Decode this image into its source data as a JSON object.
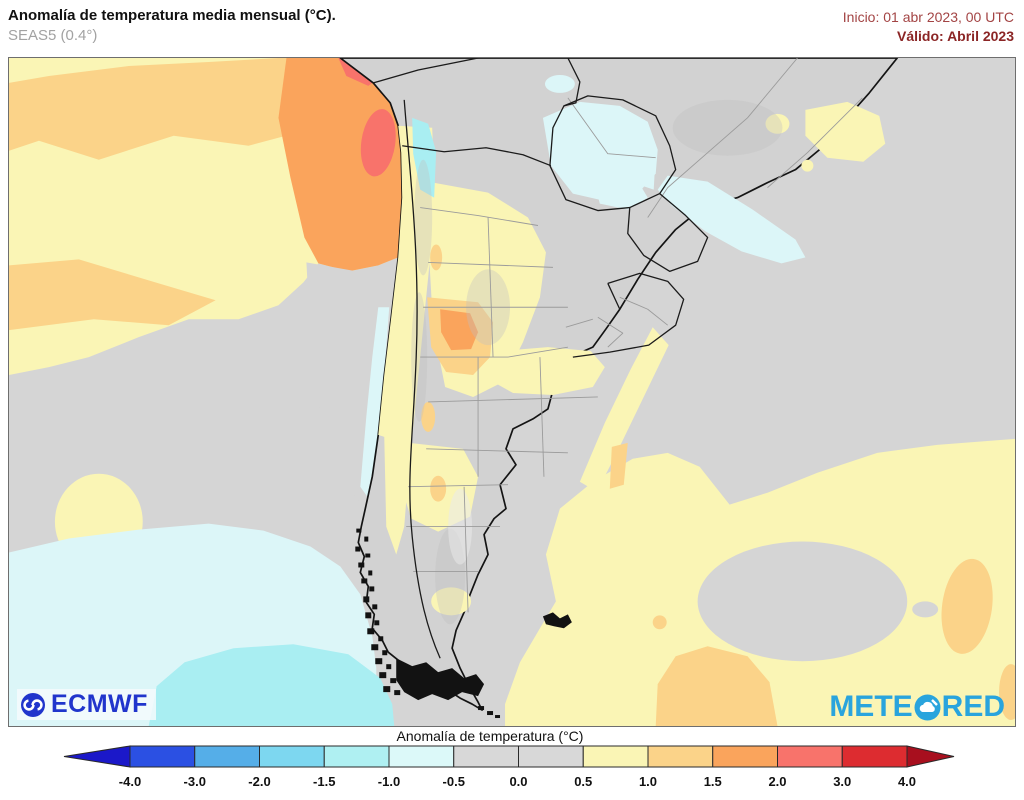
{
  "header": {
    "title": "Anomalía de temperatura media mensual (°C).",
    "model": "SEAS5 (0.4°)",
    "init_label": "Inicio: 01 abr 2023, 00 UTC",
    "valid_label": "Válido: Abril 2023"
  },
  "branding": {
    "ecmwf": "ECMWF",
    "meteored_left": "METE",
    "meteored_right": "RED"
  },
  "palette": {
    "ocean": "#d5d5d5",
    "land": "#d2d2d2",
    "anom_p05": "#faf5b5",
    "anom_p10": "#fbd389",
    "anom_p15": "#faa45c",
    "anom_p20": "#f8736b",
    "anom_p30": "#dd2c30",
    "anom_m05": "#dcf6f8",
    "anom_m10": "#a9eef2",
    "border_country": "#1b1b1b",
    "border_province": "#9b9b9b",
    "title_black": "#111111",
    "subtitle_gray": "#a2a2a2",
    "inicio_red": "#a34444",
    "valido_red": "#8b2525",
    "ecmwf_blue": "#2135cc",
    "meteored_blue": "#29a4dd"
  },
  "chart_data": {
    "type": "heatmap",
    "title": "Anomalía de temperatura (°C)",
    "subject": "Monthly mean temperature anomaly forecast, SEAS5 0.4°, init 01 Apr 2023 00 UTC, valid April 2023, southern South America",
    "colorbar": {
      "ticks": [
        "-4.0",
        "-3.0",
        "-2.0",
        "-1.5",
        "-1.0",
        "-0.5",
        "0.0",
        "0.5",
        "1.0",
        "1.5",
        "2.0",
        "3.0",
        "4.0"
      ],
      "segment_colors": [
        "#2b50e3",
        "#55aee8",
        "#7dd7f0",
        "#aff0f2",
        "#dcf9f9",
        "#d8d8d8",
        "#d8d8d8",
        "#faf5b5",
        "#fbd389",
        "#faa45c",
        "#f8736b",
        "#dd2c30"
      ],
      "left_arrow_color": "#1b18c9",
      "right_arrow_color": "#a80f1e",
      "legend_position": "bottom"
    },
    "regions": [
      {
        "area": "Pacific off Peru and far northern Chile",
        "anomaly_c": "+1.5 to +3.0"
      },
      {
        "area": "Subtropical SE Pacific bands",
        "anomaly_c": "+0.5 to +1.5"
      },
      {
        "area": "Chilean Andes ribbon",
        "anomaly_c": "+0.5 to +1.0"
      },
      {
        "area": "Cuyo / NW Argentina (Mendoza-San Juan-La Rioja)",
        "anomaly_c": "+1.0 to +2.0"
      },
      {
        "area": "Bolivian Altiplano valleys",
        "anomaly_c": "-1.5 to -1.0"
      },
      {
        "area": "Paraguay / Pantanal lowlands",
        "anomaly_c": "-1.0 to -0.5"
      },
      {
        "area": "SE Brazil coast (Sao Paulo-Santa Catarina)",
        "anomaly_c": "-1.0 to -0.5"
      },
      {
        "area": "Brazil interior highlands (Minas Gerais)",
        "anomaly_c": "+0.5 to +1.0"
      },
      {
        "area": "Central Argentina (Buenos Aires-La Pampa)",
        "anomaly_c": "+0.5 to +1.0"
      },
      {
        "area": "South Atlantic patches",
        "anomaly_c": "+0.5 to +1.5"
      },
      {
        "area": "Far SW Pacific corner",
        "anomaly_c": "-1.5 to -0.5"
      },
      {
        "area": "Patagonia and central ocean",
        "anomaly_c": "-0.5 to +0.5 (neutral gray)"
      }
    ]
  }
}
